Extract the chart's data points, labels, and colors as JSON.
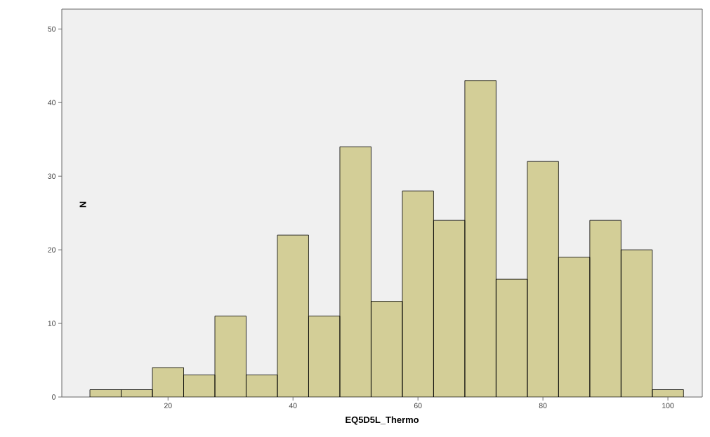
{
  "chart_data": {
    "type": "histogram",
    "xlabel": "EQ5D5L_Thermo",
    "ylabel": "N",
    "bins": [
      7.5,
      12.5,
      17.5,
      22.5,
      27.5,
      32.5,
      37.5,
      42.5,
      47.5,
      52.5,
      57.5,
      62.5,
      67.5,
      72.5,
      77.5,
      82.5,
      87.5,
      92.5,
      97.5,
      102.5
    ],
    "values": [
      1,
      1,
      4,
      3,
      11,
      3,
      22,
      11,
      34,
      13,
      28,
      24,
      43,
      16,
      32,
      19,
      24,
      20,
      1
    ],
    "color": "#d3ce97",
    "xlim": [
      3,
      105.5
    ],
    "ylim": [
      0,
      52.7
    ],
    "xticks": [
      20,
      40,
      60,
      80,
      100
    ],
    "yticks": [
      0,
      10,
      20,
      30,
      40,
      50
    ]
  }
}
